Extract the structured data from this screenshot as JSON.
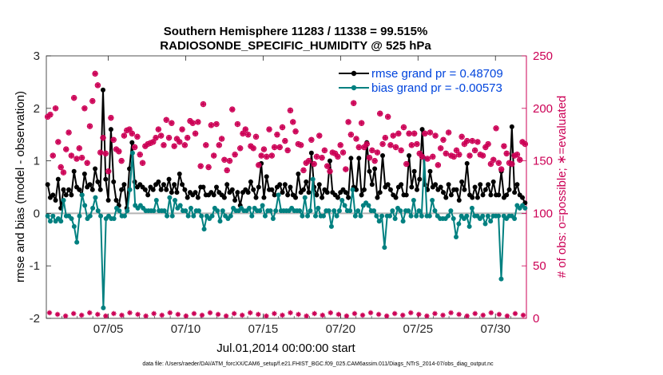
{
  "chart_data": {
    "type": "line",
    "title_line1": "Southern Hemisphere 11283 / 11338 = 99.515%",
    "title_line2": "RADIOSONDE_SPECIFIC_HUMIDITY @ 525 hPa",
    "xlabel": "Jul.01,2014 00:00:00 start",
    "ylabel_left": "rmse and bias (model - observation)",
    "ylabel_right": "# of obs: o=possible; ∗=evaluated",
    "footer": "data file: /Users/raeder/DAI/ATM_forcXX/CAM6_setup/f.e21.FHIST_BGC.f09_025.CAM6assim.011/Diags_NTrS_2014-07/obs_diag_output.nc",
    "x_start_day": 1,
    "x_end_day": 32,
    "xticks": [
      {
        "day": 5,
        "label": "07/05"
      },
      {
        "day": 10,
        "label": "07/10"
      },
      {
        "day": 15,
        "label": "07/15"
      },
      {
        "day": 20,
        "label": "07/20"
      },
      {
        "day": 25,
        "label": "07/25"
      },
      {
        "day": 30,
        "label": "07/30"
      }
    ],
    "ylim_left": [
      -2,
      3
    ],
    "yticks_left": [
      -2,
      -1,
      0,
      1,
      2,
      3
    ],
    "ylim_right": [
      0,
      250
    ],
    "yticks_right": [
      0,
      50,
      100,
      150,
      200,
      250
    ],
    "colors": {
      "rmse": "#000000",
      "bias": "#008080",
      "counts": "#cc0055",
      "legend_text": "#0044dd",
      "zero_line": "#b4b4b4"
    },
    "series": [
      {
        "name": "rmse grand pr = 0.48709",
        "key": "rmse",
        "values": [
          0.55,
          0.3,
          0.35,
          0.25,
          0.65,
          0.1,
          0.45,
          0.35,
          0.45,
          0.35,
          0.8,
          0.5,
          0.45,
          0.35,
          0.75,
          0.5,
          0.55,
          0.45,
          0.85,
          0.6,
          0.45,
          2.35,
          0.65,
          0.25,
          1.6,
          0.6,
          0.25,
          0.15,
          0.45,
          0.55,
          0.1,
          0.85,
          1.35,
          0.6,
          0.5,
          0.55,
          0.5,
          0.45,
          0.35,
          0.5,
          0.45,
          0.55,
          0.6,
          0.45,
          0.55,
          0.45,
          0.65,
          0.4,
          0.55,
          0.4,
          0.75,
          0.55,
          0.45,
          0.3,
          0.4,
          0.35,
          0.4,
          0.3,
          0.5,
          0.5,
          0.35,
          0.35,
          0.4,
          0.35,
          0.5,
          0.4,
          0.35,
          0.3,
          0.55,
          0.4,
          0.45,
          0.25,
          0.4,
          0.15,
          0.4,
          0.45,
          0.4,
          0.6,
          0.45,
          0.3,
          0.5,
          0.95,
          0.3,
          0.7,
          0.45,
          0.45,
          0.35,
          0.5,
          0.55,
          0.4,
          0.55,
          0.35,
          0.5,
          0.35,
          0.3,
          0.75,
          0.4,
          0.45,
          0.6,
          0.4,
          1.15,
          0.5,
          0.35,
          0.55,
          0.3,
          0.45,
          0.4,
          1.0,
          0.4,
          0.35,
          0.3,
          0.4,
          0.45,
          0.4,
          0.3,
          1.05,
          0.5,
          0.45,
          1.05,
          0.35,
          0.45,
          1.35,
          0.8,
          0.55,
          0.85,
          0.3,
          0.4,
          1.1,
          0.5,
          0.55,
          0.45,
          0.35,
          0.3,
          0.5,
          0.55,
          0.35,
          0.35,
          1.1,
          0.5,
          0.8,
          0.45,
          0.65,
          1.6,
          0.55,
          0.45,
          0.8,
          0.5,
          0.55,
          0.45,
          0.5,
          0.4,
          0.3,
          0.55,
          0.35,
          0.45,
          0.45,
          0.25,
          0.6,
          0.45,
          0.95,
          0.35,
          0.3,
          0.5,
          0.3,
          0.55,
          0.35,
          0.45,
          0.55,
          0.35,
          0.6,
          0.35,
          0.35,
          0.8,
          0.3,
          0.35,
          0.45,
          1.65,
          0.4,
          0.55,
          0.35,
          0.3,
          0.2
        ]
      },
      {
        "name": "bias grand pr = -0.00573",
        "key": "bias",
        "values": [
          -0.05,
          -0.15,
          -0.05,
          -0.15,
          -0.1,
          -0.15,
          0.25,
          -0.05,
          -0.05,
          -0.1,
          -0.25,
          -0.55,
          -0.05,
          0.35,
          0.15,
          -0.1,
          -0.05,
          0.1,
          0.3,
          0.05,
          -0.05,
          -1.8,
          -0.1,
          -0.05,
          -0.1,
          -0.1,
          0.1,
          0.05,
          -0.05,
          -0.05,
          0.05,
          0.45,
          1.15,
          0.15,
          0.1,
          0.15,
          0.1,
          0.05,
          0.05,
          0.05,
          0.05,
          0.25,
          0.05,
          0.05,
          0.05,
          -0.05,
          0.3,
          -0.05,
          0.25,
          0.1,
          0.15,
          0.05,
          0.05,
          -0.05,
          0.1,
          -0.05,
          0.05,
          0.05,
          -0.05,
          -0.3,
          -0.05,
          -0.1,
          -0.05,
          0.1,
          0.05,
          -0.15,
          0.05,
          -0.05,
          -0.1,
          -0.05,
          0.1,
          0.05,
          0.05,
          0.1,
          0.05,
          0.05,
          0.1,
          -0.05,
          0.1,
          0.05,
          0.05,
          0.15,
          -0.05,
          0.05,
          0.05,
          -0.1,
          0.05,
          0.35,
          0.05,
          0.05,
          0.05,
          0.05,
          0.1,
          0.05,
          0.05,
          0.05,
          -0.05,
          0.3,
          -0.05,
          0.05,
          0.65,
          -0.05,
          0.1,
          -0.05,
          -0.05,
          0.05,
          0.05,
          -0.25,
          0.05,
          -0.05,
          0.05,
          0.25,
          0.15,
          0.05,
          0.05,
          0.45,
          -0.05,
          0.05,
          -0.05,
          0.15,
          0.2,
          0.15,
          0.05,
          0.05,
          -0.05,
          -0.15,
          -0.05,
          -0.65,
          -0.05,
          -0.05,
          0.05,
          -0.1,
          0.1,
          0.05,
          -0.15,
          0.05,
          0.05,
          -0.05,
          0.25,
          -0.05,
          0.05,
          -0.05,
          1.05,
          -0.05,
          -0.05,
          0.25,
          0.05,
          -0.05,
          -0.1,
          -0.1,
          -0.1,
          -0.05,
          0.05,
          -0.1,
          -0.45,
          -0.2,
          -0.05,
          -0.1,
          -0.05,
          -0.25,
          0.1,
          -0.05,
          -0.05,
          -0.1,
          -0.05,
          -0.2,
          -0.05,
          -0.15,
          -0.05,
          -0.05,
          -0.05,
          -1.25,
          -0.05,
          -0.1,
          -0.05,
          -0.05,
          -0.1,
          0.15,
          0.1,
          0.15,
          0.1
        ]
      }
    ],
    "evaluated_counts": [
      192,
      194,
      155,
      200,
      168,
      144,
      139,
      161,
      177,
      155,
      210,
      152,
      162,
      153,
      200,
      148,
      183,
      207,
      233,
      222,
      158,
      172,
      157,
      140,
      191,
      170,
      161,
      159,
      150,
      174,
      179,
      180,
      176,
      163,
      173,
      156,
      148,
      164,
      166,
      167,
      168,
      172,
      180,
      174,
      165,
      189,
      172,
      186,
      164,
      171,
      168,
      180,
      165,
      172,
      188,
      186,
      176,
      187,
      145,
      204,
      165,
      144,
      184,
      155,
      185,
      165,
      171,
      151,
      141,
      150,
      199,
      156,
      185,
      162,
      176,
      180,
      175,
      164,
      162,
      173,
      146,
      155,
      161,
      154,
      180,
      155,
      163,
      175,
      163,
      182,
      169,
      160,
      198,
      187,
      178,
      166,
      165,
      141,
      148,
      150,
      170,
      147,
      154,
      174,
      153,
      160,
      145,
      140,
      158,
      157,
      154,
      165,
      158,
      142,
      187,
      175,
      205,
      171,
      163,
      186,
      163,
      166,
      153,
      160,
      150,
      158,
      195,
      166,
      172,
      192,
      165,
      174,
      163,
      176,
      160,
      182,
      147,
      176,
      165,
      176,
      166,
      157,
      154,
      176,
      152,
      177,
      154,
      174,
      146,
      162,
      170,
      157,
      177,
      155,
      154,
      160,
      156,
      173,
      166,
      169,
      155,
      169,
      160,
      168,
      156,
      155,
      163,
      166,
      147,
      151,
      181,
      148,
      142,
      164,
      157,
      148,
      147,
      155,
      156,
      151,
      168,
      166
    ],
    "possible_counts": [
      192,
      194,
      155,
      200,
      168,
      144,
      139,
      161,
      177,
      155,
      210,
      152,
      162,
      153,
      200,
      148,
      183,
      207,
      233,
      222,
      158,
      172,
      157,
      140,
      191,
      170,
      161,
      159,
      150,
      174,
      179,
      180,
      176,
      163,
      173,
      156,
      148,
      164,
      166,
      167,
      168,
      172,
      180,
      174,
      165,
      189,
      172,
      186,
      164,
      171,
      168,
      180,
      165,
      172,
      188,
      186,
      176,
      187,
      145,
      204,
      165,
      144,
      184,
      155,
      185,
      165,
      171,
      151,
      141,
      150,
      199,
      156,
      185,
      162,
      176,
      180,
      175,
      164,
      162,
      173,
      146,
      155,
      161,
      154,
      180,
      155,
      163,
      175,
      163,
      182,
      169,
      160,
      198,
      187,
      178,
      166,
      165,
      141,
      148,
      150,
      170,
      147,
      154,
      174,
      153,
      160,
      145,
      140,
      158,
      157,
      154,
      165,
      158,
      142,
      187,
      175,
      205,
      171,
      163,
      186,
      163,
      166,
      153,
      160,
      150,
      158,
      195,
      166,
      172,
      192,
      165,
      174,
      163,
      176,
      160,
      182,
      147,
      176,
      165,
      176,
      166,
      157,
      154,
      176,
      152,
      177,
      154,
      174,
      146,
      162,
      170,
      157,
      177,
      155,
      154,
      160,
      156,
      173,
      166,
      169,
      155,
      169,
      160,
      168,
      156,
      155,
      163,
      166,
      147,
      151,
      181,
      148,
      142,
      164,
      157,
      148,
      147,
      155,
      156,
      151,
      168,
      166
    ],
    "counts_note": "counts near zero shown as small markers along the bottom axis"
  }
}
